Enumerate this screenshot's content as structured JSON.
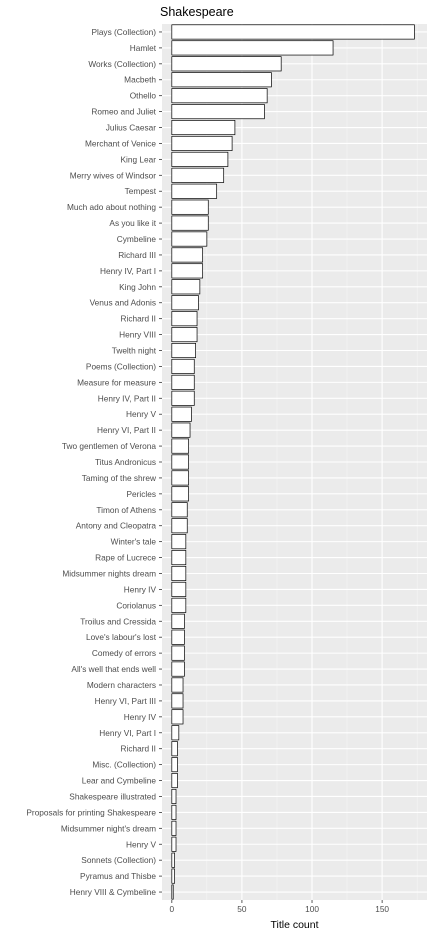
{
  "chart_data": {
    "type": "bar",
    "orientation": "horizontal",
    "title": "Shakespeare",
    "xlabel": "Title count",
    "ylabel": "",
    "xlim": [
      -7,
      182
    ],
    "x_ticks": [
      0,
      50,
      100,
      150
    ],
    "grid": true,
    "categories": [
      "Plays (Collection)",
      "Hamlet",
      "Works (Collection)",
      "Macbeth",
      "Othello",
      "Romeo and Juliet",
      "Julius Caesar",
      "Merchant of Venice",
      "King Lear",
      "Merry wives of Windsor",
      "Tempest",
      "Much ado about nothing",
      "As you like it",
      "Cymbeline",
      "Richard III",
      "Henry IV, Part I",
      "King John",
      "Venus and Adonis",
      "Richard II",
      "Henry VIII",
      "Twelth night",
      "Poems (Collection)",
      "Measure for measure",
      "Henry IV, Part II",
      "Henry V",
      "Henry VI, Part II",
      "Two gentlemen of Verona",
      "Titus Andronicus",
      "Taming of the shrew",
      "Pericles",
      "Timon of Athens",
      "Antony and Cleopatra",
      "Winter's tale",
      "Rape of Lucrece",
      "Midsummer nights dream",
      "Henry IV",
      "Coriolanus",
      "Troilus and Cressida",
      "Love's labour's lost",
      "Comedy of errors",
      "All's well that ends well",
      "Modern characters",
      "Henry VI, Part III",
      "Henry IV",
      "Henry VI, Part I",
      "Richard II",
      "Misc. (Collection)",
      "Lear and Cymbeline",
      "Shakespeare illustrated",
      "Proposals for printing Shakespeare",
      "Midsummer night's dream",
      "Henry V",
      "Sonnets (Collection)",
      "Pyramus and Thisbe",
      "Henry VIII & Cymbeline"
    ],
    "values": [
      173,
      115,
      78,
      71,
      68,
      66,
      45,
      43,
      40,
      37,
      32,
      26,
      26,
      25,
      22,
      22,
      20,
      19,
      18,
      18,
      17,
      16,
      16,
      16,
      14,
      13,
      12,
      12,
      12,
      12,
      11,
      11,
      10,
      10,
      10,
      10,
      10,
      9,
      9,
      9,
      9,
      8,
      8,
      8,
      5,
      4,
      4,
      4,
      3,
      3,
      3,
      3,
      2,
      2,
      1
    ],
    "colors": {
      "panel_background": "#ebebeb",
      "grid_major": "#ffffff",
      "grid_minor": "#f5f5f5",
      "bar_fill": "#ffffff",
      "bar_outline": "#000000"
    }
  }
}
